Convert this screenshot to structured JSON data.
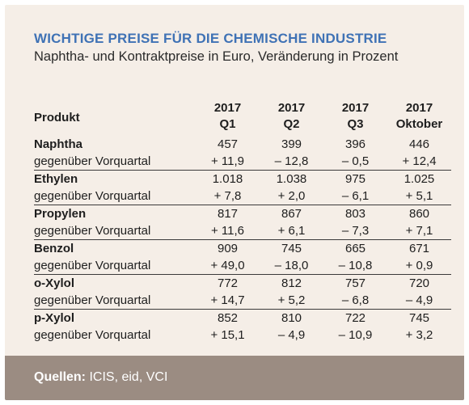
{
  "title": "WICHTIGE PREISE FÜR DIE CHEMISCHE INDUSTRIE",
  "subtitle": "Naphtha- und Kontraktpreise in Euro, Veränderung in Prozent",
  "table": {
    "product_header": "Produkt",
    "columns": [
      {
        "year": "2017",
        "period": "Q1"
      },
      {
        "year": "2017",
        "period": "Q2"
      },
      {
        "year": "2017",
        "period": "Q3"
      },
      {
        "year": "2017",
        "period": "Oktober"
      }
    ],
    "change_label": "gegenüber Vorquartal",
    "rows": [
      {
        "product": "Naphtha",
        "prices": [
          "457",
          "399",
          "396",
          "446"
        ],
        "changes": [
          "+ 11,9",
          "– 12,8",
          "– 0,5",
          "+ 12,4"
        ]
      },
      {
        "product": "Ethylen",
        "prices": [
          "1.018",
          "1.038",
          "975",
          "1.025"
        ],
        "changes": [
          "+ 7,8",
          "+ 2,0",
          "– 6,1",
          "+ 5,1"
        ]
      },
      {
        "product": "Propylen",
        "prices": [
          "817",
          "867",
          "803",
          "860"
        ],
        "changes": [
          "+ 11,6",
          "+ 6,1",
          "– 7,3",
          "+ 7,1"
        ]
      },
      {
        "product": "Benzol",
        "prices": [
          "909",
          "745",
          "665",
          "671"
        ],
        "changes": [
          "+ 49,0",
          "– 18,0",
          "– 10,8",
          "+ 0,9"
        ]
      },
      {
        "product": "o-Xylol",
        "prices": [
          "772",
          "812",
          "757",
          "720"
        ],
        "changes": [
          "+ 14,7",
          "+ 5,2",
          "– 6,8",
          "– 4,9"
        ]
      },
      {
        "product": "p-Xylol",
        "prices": [
          "852",
          "810",
          "722",
          "745"
        ],
        "changes": [
          "+ 15,1",
          "– 4,9",
          "– 10,9",
          "+ 3,2"
        ]
      }
    ]
  },
  "footer": {
    "label": "Quellen:",
    "text": " ICIS, eid, VCI"
  },
  "colors": {
    "title": "#3f72b5",
    "background": "#f5eee7",
    "footer": "#9b8c82"
  }
}
